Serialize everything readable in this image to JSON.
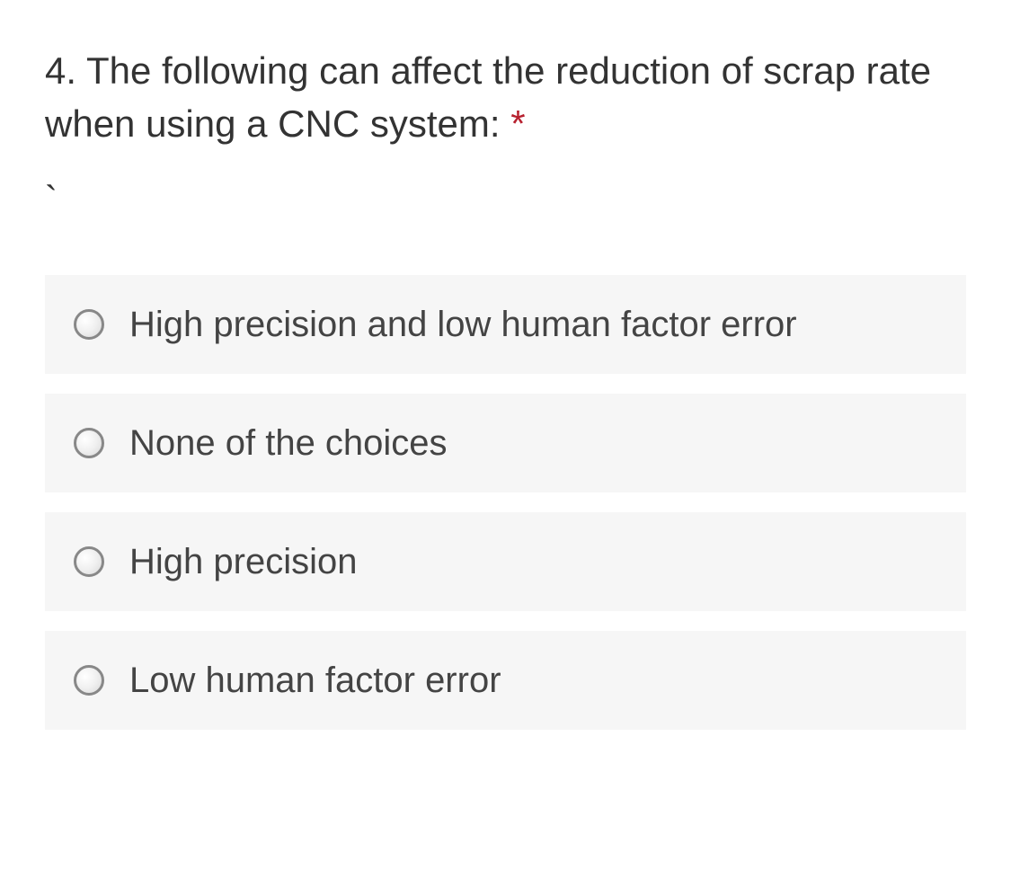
{
  "question": {
    "number": "4.",
    "text": "The following can affect the reduction of scrap rate when using a CNC system:",
    "required_marker": "*",
    "extra_mark": "`"
  },
  "options": [
    {
      "label": "High precision and low human factor error"
    },
    {
      "label": "None of the choices"
    },
    {
      "label": "High precision"
    },
    {
      "label": "Low human factor error"
    }
  ],
  "styling": {
    "background_color": "#ffffff",
    "option_background": "#f6f6f6",
    "text_color": "#333333",
    "option_text_color": "#444444",
    "asterisk_color": "#b7202e",
    "radio_border_color": "#888888",
    "question_fontsize": 42,
    "option_fontsize": 40,
    "radio_size": 34,
    "option_gap": 22,
    "option_padding": 28
  }
}
